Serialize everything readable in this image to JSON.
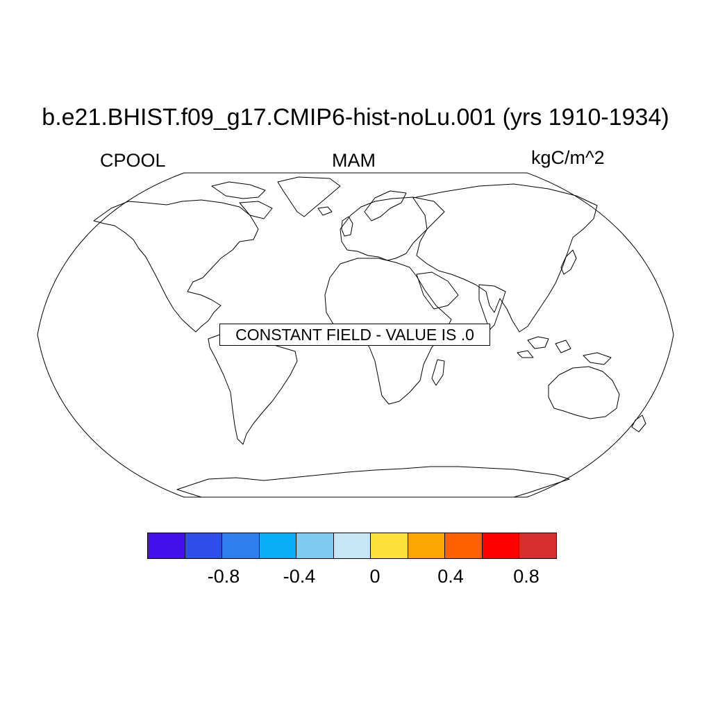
{
  "title": "b.e21.BHIST.f09_g17.CMIP6-hist-noLu.001 (yrs 1910-1934)",
  "left_string": "CPOOL",
  "center_string": "MAM",
  "right_string": "kgC/m^2",
  "notice": "CONSTANT FIELD - VALUE IS .0",
  "projection": "Robinson",
  "colorbar": {
    "colors": [
      "#4411ee",
      "#2e4ee8",
      "#2f7eee",
      "#0aaef5",
      "#7fcbef",
      "#c6e6f6",
      "#fde13a",
      "#fea700",
      "#fe6200",
      "#fe0000",
      "#d62e2e"
    ],
    "tick_labels": [
      "-0.8",
      "-0.4",
      "0",
      "0.4",
      "0.8"
    ]
  }
}
